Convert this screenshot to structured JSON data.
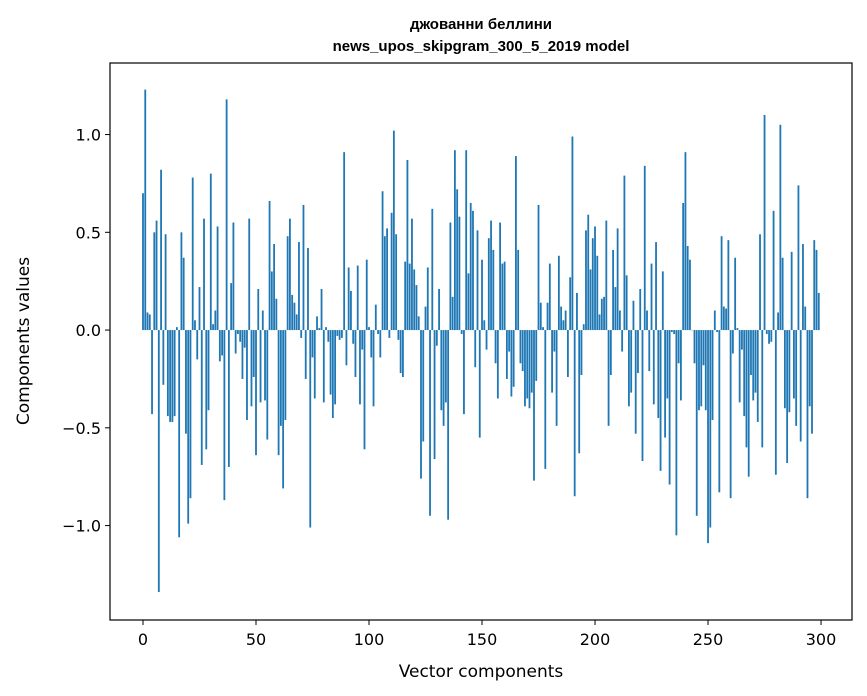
{
  "chart_data": {
    "type": "bar",
    "title": [
      "джованни беллини",
      "news_upos_skipgram_300_5_2019 model"
    ],
    "xlabel": "Vector components",
    "ylabel": "Components values",
    "xlim": [
      -14.6,
      313.7
    ],
    "ylim": [
      -1.483,
      1.366
    ],
    "xticks": [
      0,
      50,
      100,
      150,
      200,
      250,
      300
    ],
    "xtick_labels": [
      "0",
      "50",
      "100",
      "150",
      "200",
      "250",
      "300"
    ],
    "yticks": [
      1.0,
      0.5,
      0.0,
      -0.5,
      -1.0
    ],
    "ytick_labels": [
      "1.0",
      "0.5",
      "0.0",
      "−0.5",
      "−1.0"
    ],
    "grid": false,
    "bar_color": "#1f77b4",
    "values": [
      0.7,
      1.23,
      0.09,
      0.08,
      -0.43,
      0.5,
      0.56,
      -1.34,
      0.82,
      -0.28,
      0.49,
      -0.44,
      -0.47,
      -0.47,
      -0.44,
      0.015,
      -1.06,
      0.5,
      0.37,
      -0.53,
      -0.99,
      -0.86,
      0.78,
      0.05,
      -0.15,
      0.22,
      -0.69,
      0.57,
      -0.61,
      -0.41,
      0.8,
      0.03,
      0.1,
      0.53,
      -0.16,
      -0.13,
      -0.87,
      1.18,
      -0.7,
      0.24,
      0.55,
      -0.12,
      -0.02,
      -0.06,
      -0.25,
      -0.09,
      -0.46,
      0.57,
      -0.39,
      -0.24,
      -0.64,
      0.21,
      -0.37,
      0.1,
      -0.36,
      -0.56,
      0.66,
      0.3,
      0.44,
      0.16,
      -0.64,
      -0.49,
      -0.81,
      -0.46,
      0.48,
      0.57,
      0.18,
      0.14,
      0.08,
      0.45,
      -0.04,
      0.64,
      -0.25,
      0.42,
      -1.01,
      -0.14,
      -0.35,
      0.07,
      0.01,
      0.21,
      -0.37,
      0.015,
      -0.06,
      -0.33,
      -0.45,
      -0.38,
      -0.03,
      -0.05,
      -0.04,
      0.91,
      -0.18,
      0.32,
      0.2,
      -0.07,
      -0.24,
      0.33,
      -0.38,
      -0.1,
      -0.61,
      0.36,
      0.015,
      -0.14,
      -0.39,
      0.13,
      -0.02,
      -0.14,
      0.71,
      0.48,
      0.52,
      -0.04,
      0.6,
      1.02,
      0.49,
      -0.05,
      -0.22,
      -0.24,
      0.35,
      0.87,
      0.34,
      0.57,
      0.31,
      0.23,
      0.07,
      -0.76,
      -0.57,
      0.12,
      0.32,
      -0.95,
      0.62,
      -0.66,
      -0.08,
      0.21,
      -0.41,
      -0.49,
      -0.37,
      -0.97,
      0.55,
      0.17,
      0.92,
      0.72,
      0.58,
      -0.02,
      -0.43,
      0.92,
      0.29,
      0.65,
      0.61,
      -0.19,
      0.51,
      -0.55,
      0.36,
      0.05,
      -0.1,
      0.47,
      0.56,
      0.41,
      -0.17,
      -0.35,
      0.55,
      0.34,
      0.35,
      -0.25,
      -0.11,
      -0.34,
      -0.29,
      0.89,
      0.41,
      -0.17,
      -0.21,
      -0.39,
      -0.35,
      -0.4,
      -0.32,
      -0.77,
      -0.26,
      0.64,
      0.14,
      0.015,
      -0.71,
      0.14,
      0.34,
      -0.32,
      -0.11,
      -0.49,
      0.38,
      0.12,
      0.05,
      0.1,
      -0.24,
      0.27,
      0.99,
      -0.85,
      0.19,
      -0.63,
      -0.23,
      0.03,
      0.51,
      0.59,
      0.31,
      0.47,
      0.53,
      0.38,
      0.08,
      0.16,
      0.17,
      0.56,
      -0.49,
      -0.23,
      0.41,
      0.22,
      0.52,
      0.1,
      -0.11,
      0.79,
      0.28,
      -0.39,
      -0.32,
      0.15,
      -0.53,
      -0.22,
      0.21,
      -0.67,
      0.84,
      0.1,
      -0.21,
      0.34,
      -0.38,
      0.45,
      -0.45,
      -0.72,
      0.3,
      -0.55,
      -0.35,
      -0.79,
      -0.01,
      -0.02,
      -1.05,
      -0.17,
      -0.36,
      0.65,
      0.91,
      0.43,
      0.36,
      0.0,
      -0.17,
      -0.95,
      -0.41,
      -0.39,
      -0.18,
      -0.41,
      -1.09,
      -1.01,
      -0.46,
      0.1,
      -0.01,
      -0.83,
      0.48,
      0.12,
      0.11,
      0.46,
      -0.86,
      -0.12,
      0.37,
      0.01,
      -0.37,
      -0.1,
      -0.44,
      -0.6,
      -0.75,
      -0.23,
      -0.36,
      -0.32,
      -0.47,
      0.49,
      -0.6,
      1.1,
      -0.02,
      -0.07,
      -0.06,
      0.61,
      -0.74,
      0.09,
      1.05,
      0.37,
      -0.4,
      -0.68,
      -0.42,
      0.4,
      -0.35,
      -0.49,
      0.74,
      -0.57,
      0.44,
      0.12,
      -0.86,
      -0.39,
      -0.53,
      0.46,
      0.41,
      0.19
    ]
  }
}
